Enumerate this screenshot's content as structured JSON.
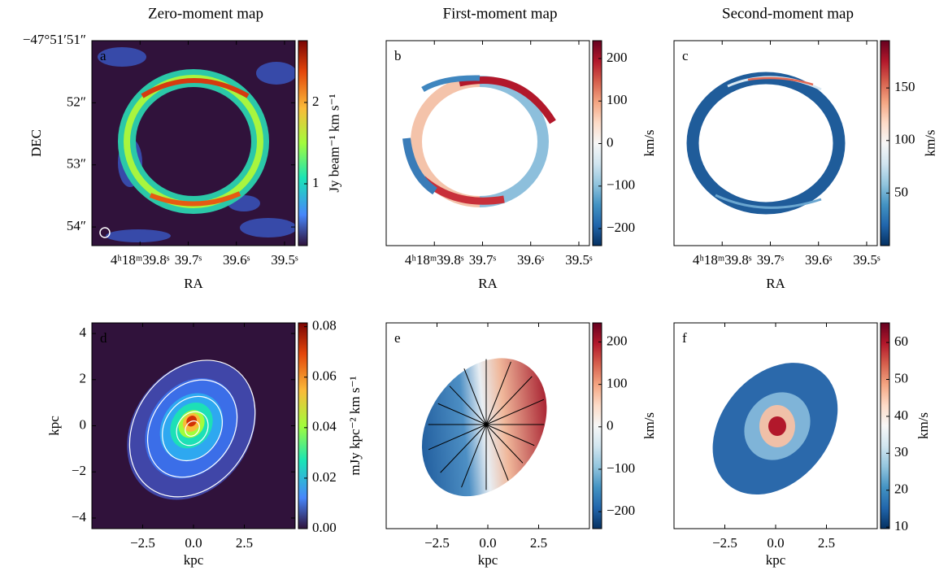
{
  "chart_data": [
    {
      "type": "image",
      "title": "Zero-moment map",
      "label": "a",
      "label_color": "#ffffff",
      "colormap": "turbo",
      "xlabel": "RA",
      "ylabel": "DEC",
      "colorbar_label": "Jy beam⁻¹ km s⁻¹",
      "xlim": [
        39.9,
        39.478
      ],
      "xticks": [
        {
          "value": 39.8,
          "label": "4ʰ18ᵐ39.8ˢ"
        },
        {
          "value": 39.7,
          "label": "39.7ˢ"
        },
        {
          "value": 39.6,
          "label": "39.6ˢ"
        },
        {
          "value": 39.5,
          "label": "39.5ˢ"
        }
      ],
      "ylim": [
        54.3,
        51
      ],
      "yticks": [
        {
          "value": 51,
          "label": "−47°51′51″"
        },
        {
          "value": 52,
          "label": "52″"
        },
        {
          "value": 53,
          "label": "53″"
        },
        {
          "value": 54,
          "label": "54″"
        }
      ],
      "clim": [
        0.24,
        2.76
      ],
      "cticks": [
        1,
        2
      ]
    },
    {
      "type": "image",
      "title": "First-moment map",
      "label": "b",
      "label_color": "#8b1a1a",
      "colormap": "rdbu",
      "xlabel": "RA",
      "colorbar_label": "km/s",
      "xlim": [
        39.9,
        39.478
      ],
      "xticks": [
        {
          "value": 39.8,
          "label": "4ʰ18ᵐ39.8ˢ"
        },
        {
          "value": 39.7,
          "label": "39.7ˢ"
        },
        {
          "value": 39.6,
          "label": "39.6ˢ"
        },
        {
          "value": 39.5,
          "label": "39.5ˢ"
        }
      ],
      "ylim": [
        54.3,
        51
      ],
      "clim": [
        -240,
        242
      ],
      "cticks": [
        200,
        100,
        0,
        {
          "value": -100,
          "label": "−100"
        },
        {
          "value": -200,
          "label": "−200"
        }
      ]
    },
    {
      "type": "image",
      "title": "Second-moment map",
      "label": "c",
      "label_color": "#8b1a1a",
      "colormap": "rdbu",
      "xlabel": "RA",
      "colorbar_label": "km/s",
      "xlim": [
        39.9,
        39.478
      ],
      "xticks": [
        {
          "value": 39.8,
          "label": "4ʰ18ᵐ39.8ˢ"
        },
        {
          "value": 39.7,
          "label": "39.7ˢ"
        },
        {
          "value": 39.6,
          "label": "39.6ˢ"
        },
        {
          "value": 39.5,
          "label": "39.5ˢ"
        }
      ],
      "ylim": [
        54.3,
        51
      ],
      "clim": [
        0,
        195
      ],
      "cticks": [
        150,
        100,
        50
      ]
    },
    {
      "type": "image",
      "label": "d",
      "label_color": "#ffffff",
      "colormap": "turbo",
      "xlabel": "kpc",
      "ylabel": "kpc",
      "colorbar_label": "mJy kpc⁻² km s⁻¹",
      "xlim": [
        -5,
        5
      ],
      "xticks": [
        {
          "value": -2.5,
          "label": "−2.5"
        },
        {
          "value": 0,
          "label": "0.0"
        },
        {
          "value": 2.5,
          "label": "2.5"
        }
      ],
      "ylim": [
        -4.46,
        4.46
      ],
      "yticks": [
        4,
        2,
        0,
        {
          "value": -2,
          "label": "−2"
        },
        {
          "value": -4,
          "label": "−4"
        }
      ],
      "clim": [
        0,
        0.0815
      ],
      "cticks": [
        {
          "value": 0,
          "label": "0.00"
        },
        {
          "value": 0.02,
          "label": "0.02"
        },
        {
          "value": 0.04,
          "label": "0.04"
        },
        {
          "value": 0.06,
          "label": "0.06"
        },
        {
          "value": 0.08,
          "label": "0.08"
        }
      ]
    },
    {
      "type": "image",
      "label": "e",
      "label_color": "#8b1a1a",
      "colormap": "rdbu",
      "xlabel": "kpc",
      "colorbar_label": "km/s",
      "xlim": [
        -5,
        5
      ],
      "xticks": [
        {
          "value": -2.5,
          "label": "−2.5"
        },
        {
          "value": 0,
          "label": "0.0"
        },
        {
          "value": 2.5,
          "label": "2.5"
        }
      ],
      "ylim": [
        -4.46,
        4.46
      ],
      "clim": [
        -240,
        245
      ],
      "cticks": [
        200,
        100,
        0,
        {
          "value": -100,
          "label": "−100"
        },
        {
          "value": -200,
          "label": "−200"
        }
      ]
    },
    {
      "type": "image",
      "label": "f",
      "label_color": "#8b1a1a",
      "colormap": "rdbu",
      "xlabel": "kpc",
      "colorbar_label": "km/s",
      "xlim": [
        -5,
        5
      ],
      "xticks": [
        {
          "value": -2.5,
          "label": "−2.5"
        },
        {
          "value": 0,
          "label": "0.0"
        },
        {
          "value": 2.5,
          "label": "2.5"
        }
      ],
      "ylim": [
        -4.46,
        4.46
      ],
      "clim": [
        9.6,
        65.3
      ],
      "cticks": [
        60,
        50,
        40,
        30,
        20,
        10
      ]
    }
  ]
}
